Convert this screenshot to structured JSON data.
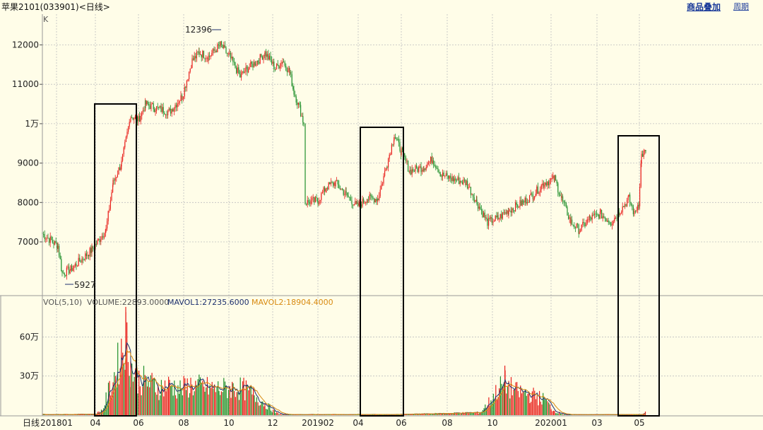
{
  "header": {
    "title": "苹果2101(033901)<日线>",
    "overlay_label": "商品叠加",
    "period_label": "周期"
  },
  "price_panel": {
    "unit_label": "K",
    "y_ticks": [
      {
        "value": 12000,
        "label": "12000"
      },
      {
        "value": 11000,
        "label": "11000"
      },
      {
        "value": 10000,
        "label": "1万"
      },
      {
        "value": 9000,
        "label": "9000"
      },
      {
        "value": 8000,
        "label": "8000"
      },
      {
        "value": 7000,
        "label": "7000"
      }
    ],
    "high_label": "12396",
    "low_label": "5927"
  },
  "volume_panel": {
    "indicator": "VOL(5,10)",
    "volume": "VOLUME:22893.0000",
    "mavol1": "MAVOL1:27235.6000",
    "mavol2": "MAVOL2:18904.4000",
    "y_ticks": [
      {
        "value": 600000,
        "label": "60万"
      },
      {
        "value": 300000,
        "label": "30万"
      }
    ]
  },
  "x_axis": {
    "unit_label": "日线",
    "ticks": [
      "201801",
      "04",
      "06",
      "08",
      "10",
      "12",
      "201902",
      "04",
      "06",
      "08",
      "10",
      "202001",
      "03",
      "05"
    ]
  },
  "colors": {
    "up": "#e8201c",
    "down": "#1f8f2a",
    "ma1": "#1c2f6e",
    "ma2": "#d88a10",
    "grid": "#bfbfbf",
    "box": "#000000"
  },
  "chart_data": {
    "type": "candlestick",
    "x_range": [
      "2018-01",
      "2020-05"
    ],
    "price_ylim": [
      5900,
      12500
    ],
    "volume_ylim": [
      0,
      800000
    ],
    "price_path": [
      {
        "date": "2018-01",
        "close": 7200
      },
      {
        "date": "2018-02",
        "close": 6200
      },
      {
        "date": "2018-03",
        "close": 6500
      },
      {
        "date": "2018-04",
        "close": 7300
      },
      {
        "date": "2018-05",
        "close": 8800
      },
      {
        "date": "2018-06",
        "close": 10200
      },
      {
        "date": "2018-07",
        "close": 10500
      },
      {
        "date": "2018-08",
        "close": 11800
      },
      {
        "date": "2018-09",
        "close": 12100
      },
      {
        "date": "2018-10",
        "close": 11300
      },
      {
        "date": "2018-11",
        "close": 11700
      },
      {
        "date": "2018-12",
        "close": 10500
      },
      {
        "date": "2019-02",
        "close": 8050
      },
      {
        "date": "2019-03",
        "close": 8500
      },
      {
        "date": "2019-04",
        "close": 7900
      },
      {
        "date": "2019-05",
        "close": 8300
      },
      {
        "date": "2019-06",
        "close": 9500
      },
      {
        "date": "2019-07",
        "close": 8900
      },
      {
        "date": "2019-08",
        "close": 8700
      },
      {
        "date": "2019-09",
        "close": 8500
      },
      {
        "date": "2019-10",
        "close": 7500
      },
      {
        "date": "2019-11",
        "close": 8000
      },
      {
        "date": "2019-12",
        "close": 8500
      },
      {
        "date": "2020-01",
        "close": 7400
      },
      {
        "date": "2020-02",
        "close": 7700
      },
      {
        "date": "2020-03",
        "close": 7500
      },
      {
        "date": "2020-04",
        "close": 7800
      },
      {
        "date": "2020-05",
        "close": 9300
      }
    ],
    "volume_path": [
      {
        "date": "2018-01",
        "volume": 5000
      },
      {
        "date": "2018-04",
        "volume": 20000
      },
      {
        "date": "2018-05",
        "volume": 600000
      },
      {
        "date": "2018-06",
        "volume": 270000
      },
      {
        "date": "2018-07",
        "volume": 230000
      },
      {
        "date": "2018-08",
        "volume": 220000
      },
      {
        "date": "2018-09",
        "volume": 210000
      },
      {
        "date": "2018-10",
        "volume": 200000
      },
      {
        "date": "2018-11",
        "volume": 120000
      },
      {
        "date": "2018-12",
        "volume": 10000
      },
      {
        "date": "2019-02",
        "volume": 3000
      },
      {
        "date": "2019-06",
        "volume": 10000
      },
      {
        "date": "2019-09",
        "volume": 120000
      },
      {
        "date": "2019-10",
        "volume": 220000
      },
      {
        "date": "2019-11",
        "volume": 180000
      },
      {
        "date": "2019-12",
        "volume": 100000
      },
      {
        "date": "2020-01",
        "volume": 5000
      },
      {
        "date": "2020-05",
        "volume": 22893
      }
    ]
  }
}
